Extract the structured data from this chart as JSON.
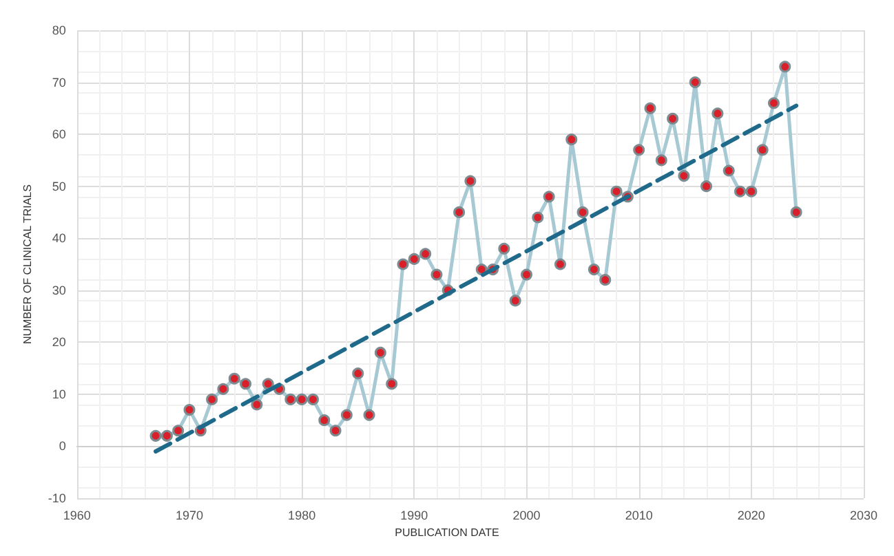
{
  "chart_data": {
    "type": "line",
    "xlabel": "PUBLICATION DATE",
    "ylabel": "NUMBER OF CLINICAL TRIALS",
    "x": [
      1967,
      1968,
      1969,
      1970,
      1971,
      1972,
      1973,
      1974,
      1975,
      1976,
      1977,
      1978,
      1979,
      1980,
      1981,
      1982,
      1983,
      1984,
      1985,
      1986,
      1987,
      1988,
      1989,
      1990,
      1991,
      1992,
      1993,
      1994,
      1995,
      1996,
      1997,
      1998,
      1999,
      2000,
      2001,
      2002,
      2003,
      2004,
      2005,
      2006,
      2007,
      2008,
      2009,
      2010,
      2011,
      2012,
      2013,
      2014,
      2015,
      2016,
      2017,
      2018,
      2019,
      2020,
      2021,
      2022,
      2023,
      2024
    ],
    "series": [
      {
        "color": "#d9202a",
        "marker": "circle",
        "values": [
          2,
          2,
          3,
          7,
          3,
          9,
          11,
          13,
          12,
          8,
          12,
          11,
          9,
          9,
          9,
          5,
          3,
          6,
          14,
          6,
          18,
          12,
          35,
          36,
          37,
          33,
          30,
          45,
          51,
          34,
          34,
          38,
          28,
          33,
          44,
          48,
          35,
          59,
          45,
          34,
          32,
          49,
          48,
          57,
          65,
          55,
          63,
          52,
          70,
          50,
          64,
          53,
          49,
          49,
          57,
          66,
          73,
          45
        ]
      },
      {
        "type": "line",
        "color": "#1f6a8a",
        "marker": "none",
        "line_style": "dashed",
        "x": [
          1967,
          2024
        ],
        "values": [
          -1,
          65.5
        ]
      }
    ],
    "xlim": [
      1960,
      2030
    ],
    "xticks": [
      1960,
      1970,
      1980,
      1990,
      2000,
      2010,
      2020,
      2030
    ],
    "ylim": [
      -10,
      80
    ],
    "yticks": [
      -10,
      0,
      10,
      20,
      30,
      40,
      50,
      60,
      70,
      80
    ],
    "grid": true
  }
}
